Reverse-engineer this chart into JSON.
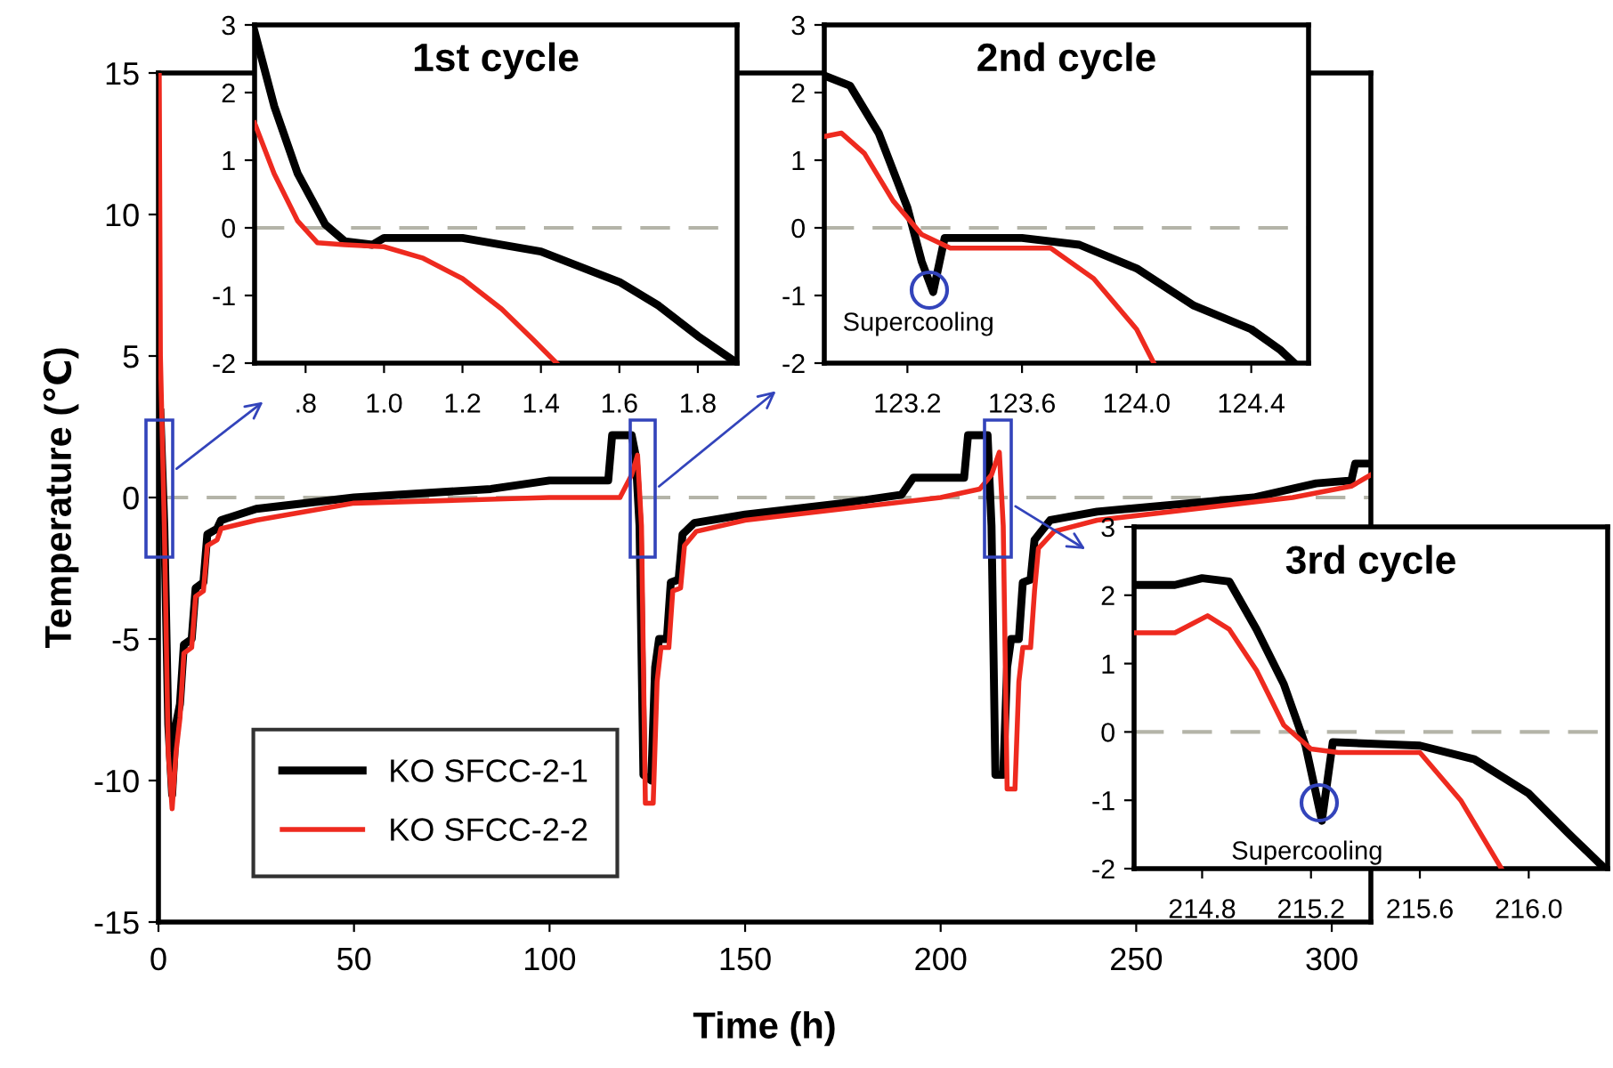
{
  "chart_data": [
    {
      "type": "line",
      "xlabel": "Time (h)",
      "ylabel": "Temperature (℃)",
      "xlim": [
        0,
        310
      ],
      "ylim": [
        -15,
        15
      ],
      "xticks": [
        0,
        50,
        100,
        150,
        200,
        250,
        300
      ],
      "yticks": [
        -15,
        -10,
        -5,
        0,
        5,
        10,
        15
      ],
      "legend": "bottom left",
      "ref_lines": [
        {
          "axis": "y",
          "value": 0,
          "color": "#b4b4a8",
          "line_style": "dashed"
        }
      ],
      "series": [
        {
          "name": "KO SFCC-2-1",
          "color": "#000000",
          "x": [
            0.5,
            1.5,
            2.5,
            3.5,
            4.5,
            5.5,
            6.5,
            8.5,
            9.5,
            11.5,
            12.5,
            15,
            16,
            25,
            50,
            85,
            100,
            115,
            116,
            121,
            122,
            123,
            124,
            126,
            127,
            128,
            130,
            131,
            133,
            134,
            137,
            150,
            175,
            190,
            193,
            206,
            207,
            212,
            213,
            214,
            216,
            217,
            218,
            220,
            221,
            223,
            224,
            228,
            240,
            280,
            296,
            305,
            306,
            310
          ],
          "values": [
            3,
            -1,
            -8,
            -10.5,
            -8,
            -7.3,
            -5.2,
            -5,
            -3.2,
            -3,
            -1.3,
            -1.1,
            -0.8,
            -0.4,
            0,
            0.3,
            0.6,
            0.6,
            2.2,
            2.2,
            1.5,
            -1,
            -9.8,
            -10,
            -6,
            -5,
            -5,
            -3,
            -2.9,
            -1.3,
            -0.9,
            -0.6,
            -0.2,
            0.1,
            0.7,
            0.7,
            2.2,
            2.2,
            -1,
            -9.8,
            -9.8,
            -6,
            -5,
            -5,
            -3,
            -2.9,
            -1.5,
            -0.8,
            -0.5,
            0,
            0.5,
            0.6,
            1.2,
            1.2
          ]
        },
        {
          "name": "KO SFCC-2-2",
          "color": "#ee2a1f",
          "x": [
            0.2,
            0.5,
            1.5,
            2.5,
            3.5,
            4.5,
            5.5,
            6.5,
            8.5,
            9.5,
            11.5,
            12.5,
            15,
            16,
            25,
            50,
            100,
            118,
            121,
            122.5,
            123.5,
            124.5,
            126.5,
            127.5,
            128.5,
            130.5,
            131.5,
            133.5,
            134.5,
            137.5,
            150,
            200,
            210,
            213,
            215,
            216,
            217,
            219,
            220,
            221,
            223,
            224,
            225,
            229,
            240,
            290,
            305,
            310
          ],
          "values": [
            15,
            5,
            -1,
            -9,
            -11,
            -9,
            -7.8,
            -5.5,
            -5.3,
            -3.5,
            -3.3,
            -1.7,
            -1.5,
            -1.1,
            -0.8,
            -0.2,
            0,
            0,
            0.8,
            1.5,
            -1,
            -10.8,
            -10.8,
            -6.5,
            -5.3,
            -5.3,
            -3.3,
            -3.2,
            -1.7,
            -1.2,
            -0.8,
            0,
            0.3,
            0.8,
            1.6,
            -1,
            -10.3,
            -10.3,
            -6.5,
            -5.3,
            -5.3,
            -3.3,
            -1.8,
            -1.2,
            -0.8,
            0,
            0.4,
            0.8
          ]
        }
      ]
    },
    {
      "type": "line",
      "title": "1st cycle",
      "xlim": [
        0.67,
        1.9
      ],
      "ylim": [
        -2,
        3
      ],
      "xticks": [
        {
          "value": 0.8,
          "label": ".8"
        },
        {
          "value": 1.0,
          "label": "1.0"
        },
        1.2,
        1.4,
        1.6,
        1.8
      ],
      "yticks": [
        -2,
        -1,
        0,
        1,
        2,
        3
      ],
      "ref_lines": [
        {
          "axis": "y",
          "value": 0,
          "color": "#b4b4a8",
          "line_style": "dashed"
        }
      ],
      "series": [
        {
          "color": "#000000",
          "x": [
            0.67,
            0.72,
            0.78,
            0.85,
            0.9,
            0.97,
            1.0,
            1.2,
            1.4,
            1.6,
            1.7,
            1.8,
            1.9
          ],
          "values": [
            2.9,
            1.8,
            0.8,
            0.05,
            -0.2,
            -0.25,
            -0.15,
            -0.15,
            -0.35,
            -0.8,
            -1.15,
            -1.6,
            -2
          ]
        },
        {
          "color": "#ee2a1f",
          "x": [
            0.67,
            0.72,
            0.78,
            0.83,
            0.9,
            1.0,
            1.1,
            1.2,
            1.3,
            1.38,
            1.44
          ],
          "values": [
            1.55,
            0.8,
            0.1,
            -0.22,
            -0.25,
            -0.28,
            -0.45,
            -0.75,
            -1.2,
            -1.65,
            -2
          ]
        }
      ]
    },
    {
      "type": "line",
      "title": "2nd cycle",
      "xlim": [
        122.91,
        124.6
      ],
      "ylim": [
        -2,
        3
      ],
      "xticks": [
        123.2,
        123.6,
        {
          "value": 124.0,
          "label": "124.0"
        },
        124.4
      ],
      "yticks": [
        -2,
        -1,
        0,
        1,
        2,
        3
      ],
      "ref_lines": [
        {
          "axis": "y",
          "value": 0,
          "color": "#b4b4a8",
          "line_style": "dashed"
        }
      ],
      "annotations": [
        {
          "text": "Supercooling",
          "x": 123.29,
          "y": -0.95
        }
      ],
      "series": [
        {
          "color": "#000000",
          "x": [
            122.91,
            123.0,
            123.1,
            123.2,
            123.25,
            123.29,
            123.33,
            123.6,
            123.8,
            124.0,
            124.2,
            124.4,
            124.5,
            124.55
          ],
          "values": [
            2.25,
            2.1,
            1.4,
            0.3,
            -0.5,
            -0.95,
            -0.15,
            -0.15,
            -0.25,
            -0.6,
            -1.15,
            -1.5,
            -1.8,
            -2
          ]
        },
        {
          "color": "#ee2a1f",
          "x": [
            122.91,
            122.97,
            123.05,
            123.15,
            123.25,
            123.35,
            123.45,
            123.7,
            123.85,
            124.0,
            124.06
          ],
          "values": [
            1.35,
            1.4,
            1.1,
            0.4,
            -0.1,
            -0.3,
            -0.3,
            -0.3,
            -0.75,
            -1.5,
            -2
          ]
        }
      ]
    },
    {
      "type": "line",
      "title": "3rd cycle",
      "xlim": [
        214.55,
        216.29
      ],
      "ylim": [
        -2,
        3
      ],
      "xticks": [
        214.8,
        215.2,
        215.6,
        {
          "value": 216.0,
          "label": "216.0"
        }
      ],
      "yticks": [
        -2,
        -1,
        0,
        1,
        2,
        3
      ],
      "ref_lines": [
        {
          "axis": "y",
          "value": 0,
          "color": "#b4b4a8",
          "line_style": "dashed"
        }
      ],
      "annotations": [
        {
          "text": "Supercooling",
          "x": 215.24,
          "y": -1.3
        }
      ],
      "series": [
        {
          "color": "#000000",
          "x": [
            214.55,
            214.7,
            214.8,
            214.9,
            215.0,
            215.1,
            215.18,
            215.24,
            215.28,
            215.6,
            215.8,
            216.0,
            216.15,
            216.28
          ],
          "values": [
            2.15,
            2.15,
            2.25,
            2.2,
            1.5,
            0.7,
            -0.2,
            -1.3,
            -0.15,
            -0.2,
            -0.4,
            -0.9,
            -1.5,
            -2
          ]
        },
        {
          "color": "#ee2a1f",
          "x": [
            214.55,
            214.7,
            214.82,
            214.9,
            215.0,
            215.1,
            215.2,
            215.3,
            215.6,
            215.75,
            215.9
          ],
          "values": [
            1.45,
            1.45,
            1.7,
            1.5,
            0.9,
            0.1,
            -0.25,
            -0.3,
            -0.3,
            -1,
            -2
          ]
        }
      ]
    }
  ]
}
